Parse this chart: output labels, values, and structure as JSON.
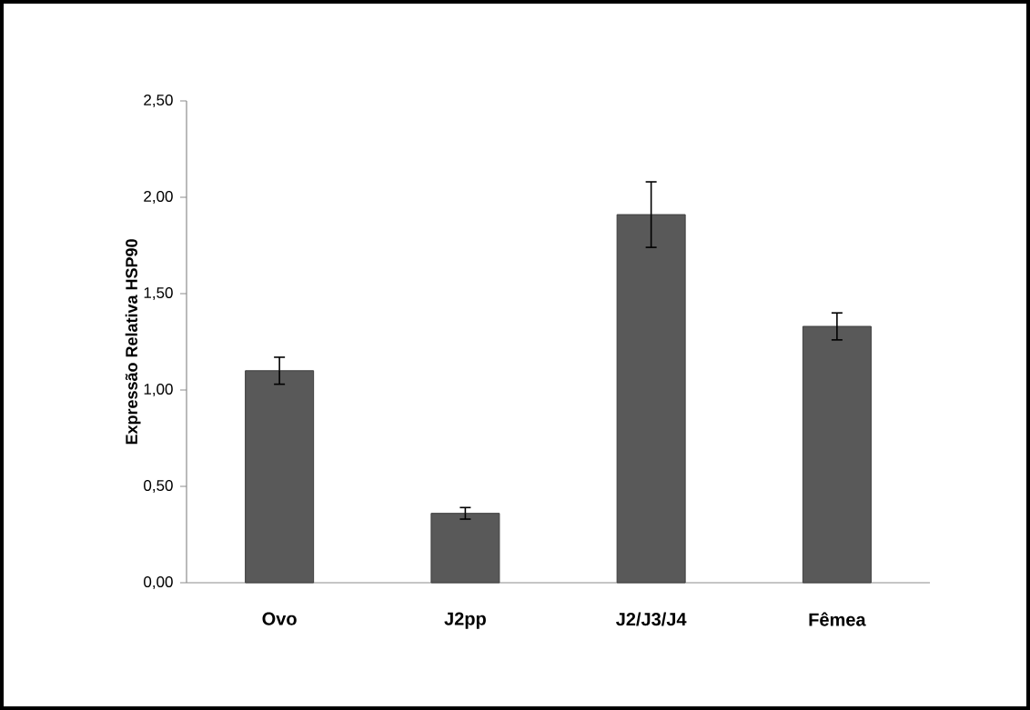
{
  "chart_data": {
    "type": "bar",
    "ylabel": "Expressão Relativa HSP90",
    "categories": [
      "Ovo",
      "J2pp",
      "J2/J3/J4",
      "Fêmea"
    ],
    "values": [
      1.1,
      0.36,
      1.91,
      1.33
    ],
    "errors": [
      0.07,
      0.03,
      0.17,
      0.07
    ],
    "color": "#595959",
    "ylim": [
      0,
      2.5
    ],
    "yticks": [
      {
        "value": 0,
        "label": "0,00"
      },
      {
        "value": 0.5,
        "label": "0,50"
      },
      {
        "value": 1,
        "label": "1,00"
      },
      {
        "value": 1.5,
        "label": "1,50"
      },
      {
        "value": 2,
        "label": "2,00"
      },
      {
        "value": 2.5,
        "label": "2,50"
      }
    ],
    "grid": false
  }
}
